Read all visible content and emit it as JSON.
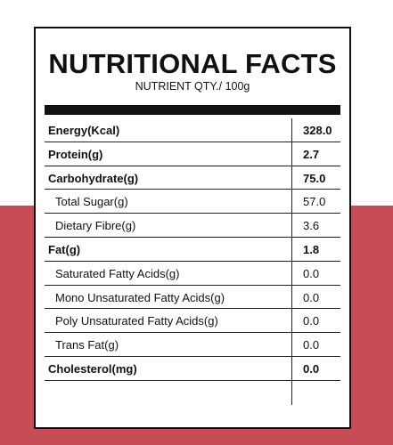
{
  "panel": {
    "title": "NUTRITIONAL FACTS",
    "subtitle": "NUTRIENT QTY./ 100g"
  },
  "rows": [
    {
      "label": "Energy(Kcal)",
      "value": "328.0",
      "bold": true,
      "sub": false
    },
    {
      "label": "Protein(g)",
      "value": "2.7",
      "bold": true,
      "sub": false
    },
    {
      "label": "Carbohydrate(g)",
      "value": "75.0",
      "bold": true,
      "sub": false
    },
    {
      "label": "Total Sugar(g)",
      "value": "57.0",
      "bold": false,
      "sub": true
    },
    {
      "label": "Dietary Fibre(g)",
      "value": "3.6",
      "bold": false,
      "sub": true
    },
    {
      "label": "Fat(g)",
      "value": "1.8",
      "bold": true,
      "sub": false
    },
    {
      "label": "Saturated Fatty Acids(g)",
      "value": "0.0",
      "bold": false,
      "sub": true
    },
    {
      "label": "Mono Unsaturated Fatty Acids(g)",
      "value": "0.0",
      "bold": false,
      "sub": true
    },
    {
      "label": "Poly Unsaturated Fatty Acids(g)",
      "value": "0.0",
      "bold": false,
      "sub": true
    },
    {
      "label": "Trans Fat(g)",
      "value": "0.0",
      "bold": false,
      "sub": true
    },
    {
      "label": "Cholesterol(mg)",
      "value": "0.0",
      "bold": true,
      "sub": false
    }
  ],
  "colors": {
    "background_band": "#c64c55",
    "panel": "#ffffff",
    "ink": "#111111"
  }
}
